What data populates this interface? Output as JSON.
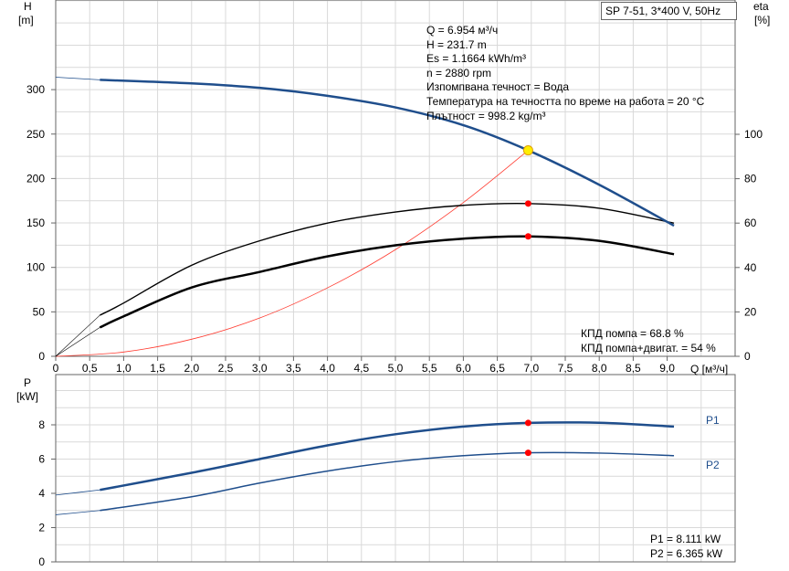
{
  "title": "SP 7-51, 3*400 V, 50Hz",
  "info": [
    "Q = 6.954 м³/ч",
    "H = 231.7 m",
    "Es = 1.1664 kWh/m³",
    "n = 2880 rpm",
    "Изпомпвана течност = Вода",
    "Температура на течността по време на работа = 20 °C",
    "Плътност = 998.2 kg/m³"
  ],
  "eff_labels": [
    "КПД помпа = 68.8 %",
    "КПД помпа+двигат. = 54 %"
  ],
  "power_labels": [
    "P1 = 8.111 kW",
    "P2 = 6.365 kW"
  ],
  "colors": {
    "head": "#1f4e8c",
    "eff": "#000000",
    "system": "#ff3b30",
    "point": "#ff0000",
    "grid": "#d9d9d9"
  },
  "chart_data": [
    {
      "type": "line",
      "title": "",
      "xlabel": "Q [м³/ч]",
      "ylabel": "H [m]",
      "ylabel_left": {
        "name": "H",
        "unit": "[m]"
      },
      "ylabel_right": {
        "name": "eta",
        "unit": "[%]"
      },
      "xlim": [
        0,
        10
      ],
      "ylim": [
        0,
        400
      ],
      "ylim_right": [
        0,
        160
      ],
      "x_ticks": [
        "0",
        "0,5",
        "1,0",
        "1,5",
        "2,0",
        "2,5",
        "3,0",
        "3,5",
        "4,0",
        "4,5",
        "5,0",
        "5,5",
        "6,0",
        "6,5",
        "7,0",
        "7,5",
        "8,0",
        "8,5",
        "9,0"
      ],
      "y_ticks": [
        0,
        50,
        100,
        150,
        200,
        250,
        300
      ],
      "y_ticks_right": [
        0,
        20,
        40,
        60,
        80,
        100
      ],
      "grid": true,
      "duty_point": {
        "Q": 6.954,
        "H": 231.7,
        "eta_pump": 68.8,
        "eta_total": 54
      },
      "series": [
        {
          "name": "H",
          "axis": "left",
          "x": [
            0,
            0.65,
            2,
            3,
            4,
            5,
            6,
            6.954,
            8,
            9.1
          ],
          "y": [
            314,
            311,
            307,
            302,
            293,
            280,
            260,
            231.7,
            193,
            147
          ]
        },
        {
          "name": "eta pump",
          "axis": "right",
          "x": [
            0.65,
            1,
            2,
            3,
            4,
            5,
            6,
            6.954,
            8,
            9.1
          ],
          "y": [
            18.5,
            24,
            41,
            52,
            60,
            65,
            68,
            68.8,
            66.7,
            60
          ]
        },
        {
          "name": "eta pump+motor",
          "axis": "right",
          "x": [
            0.65,
            1,
            2,
            3,
            4,
            5,
            6,
            6.954,
            8,
            9.1
          ],
          "y": [
            13,
            18,
            31,
            38,
            45,
            50,
            53,
            54,
            52,
            46
          ]
        },
        {
          "name": "system curve",
          "axis": "left",
          "x": [
            0,
            1,
            2,
            3,
            4,
            5,
            6,
            6.954
          ],
          "y": [
            0,
            4.8,
            19.2,
            43,
            77,
            120,
            173,
            231.7
          ]
        }
      ]
    },
    {
      "type": "line",
      "xlabel": "Q [м³/ч]",
      "ylabel": "P [kW]",
      "ylabel_left": {
        "name": "P",
        "unit": "[kW]"
      },
      "xlim": [
        0,
        10
      ],
      "ylim": [
        0,
        11
      ],
      "y_ticks": [
        0,
        2,
        4,
        6,
        8
      ],
      "grid": true,
      "duty_point": {
        "Q": 6.954,
        "P1": 8.111,
        "P2": 6.365
      },
      "series": [
        {
          "name": "P1",
          "x": [
            0,
            0.65,
            2,
            3,
            4,
            5,
            6,
            6.954,
            8,
            9.1
          ],
          "y": [
            3.9,
            4.2,
            5.2,
            6.0,
            6.8,
            7.45,
            7.9,
            8.111,
            8.12,
            7.9
          ]
        },
        {
          "name": "P2",
          "x": [
            0,
            0.65,
            2,
            3,
            4,
            5,
            6,
            6.954,
            8,
            9.1
          ],
          "y": [
            2.75,
            3.0,
            3.8,
            4.6,
            5.3,
            5.85,
            6.2,
            6.365,
            6.35,
            6.2
          ]
        }
      ]
    }
  ]
}
